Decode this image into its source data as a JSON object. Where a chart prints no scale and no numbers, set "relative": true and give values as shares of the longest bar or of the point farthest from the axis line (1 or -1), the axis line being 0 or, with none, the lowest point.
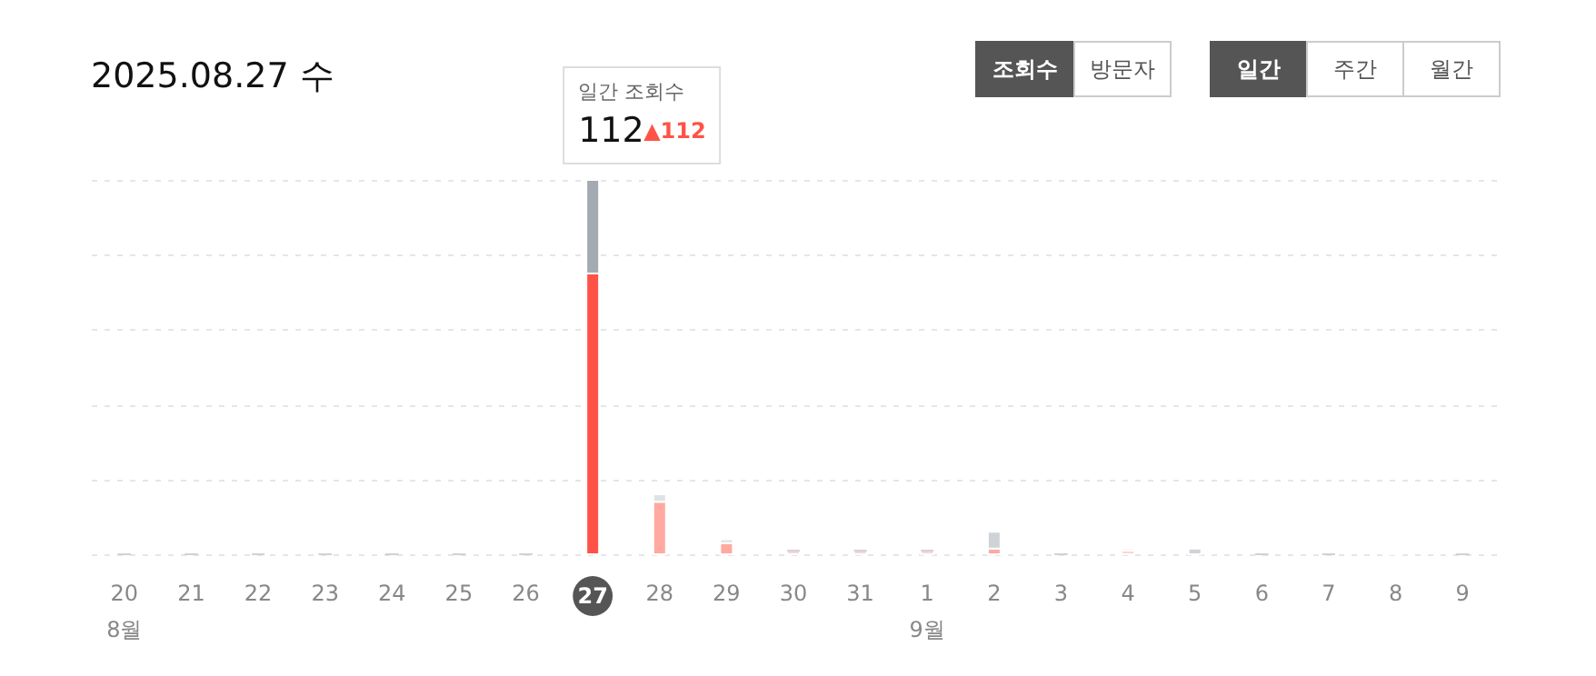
{
  "chart_data": {
    "type": "bar",
    "title": "2025.08.27 수",
    "relative": true,
    "stacked": true,
    "grid": "y",
    "categories": [
      "20\n8월",
      "21",
      "22",
      "23",
      "24",
      "25",
      "26",
      "27",
      "28",
      "29",
      "30",
      "31",
      "1\n9월",
      "2",
      "3",
      "4",
      "5",
      "6",
      "7",
      "8",
      "9"
    ],
    "series": [
      {
        "colors": [
          "#ffa9a0",
          "#ffa9a0",
          "#ffa9a0",
          "#ffa9a0",
          "#ffa9a0",
          "#ffa9a0",
          "#ffa9a0",
          "#ff5247",
          "#ffa9a0",
          "#ffa9a0",
          "#fdd5d1",
          "#fdd5d1",
          "#fdd5d1",
          "#ffa9a0",
          "#ffa9a0",
          "#fdd5d1",
          "#ffa9a0",
          "#ffa9a0",
          "#ffa9a0",
          "#ffa9a0",
          "#ffa9a0"
        ],
        "values": [
          0,
          0,
          0,
          0,
          0,
          0,
          0,
          0.75,
          0.14,
          0.03,
          0.01,
          0.01,
          0.01,
          0.015,
          0,
          0.01,
          0,
          0,
          0,
          0,
          0
        ]
      },
      {
        "colors": [
          "#cfd3d8",
          "#cfd3d8",
          "#cfd3d8",
          "#cfd3d8",
          "#cfd3d8",
          "#cfd3d8",
          "#cfd3d8",
          "#a3aab2",
          "#dfe2e5",
          "#dfe2e5",
          "#cfd3d8",
          "#cfd3d8",
          "#cfd3d8",
          "#cfd3d8",
          "#cfd3d8",
          "#dfe2e5",
          "#cfd3d8",
          "#cfd3d8",
          "#cfd3d8",
          "#e3e5e8",
          "#cfd3d8"
        ],
        "values": [
          0,
          0,
          0,
          0,
          0,
          0,
          0,
          0.25,
          0.02,
          0.01,
          0,
          0,
          0,
          0.045,
          0,
          0.005,
          0.015,
          0,
          0,
          0.005,
          0
        ]
      }
    ],
    "annotations": [
      "일간 조회수",
      "112",
      "▲112",
      "조회수",
      "방문자",
      "일간",
      "주간",
      "월간"
    ]
  }
}
